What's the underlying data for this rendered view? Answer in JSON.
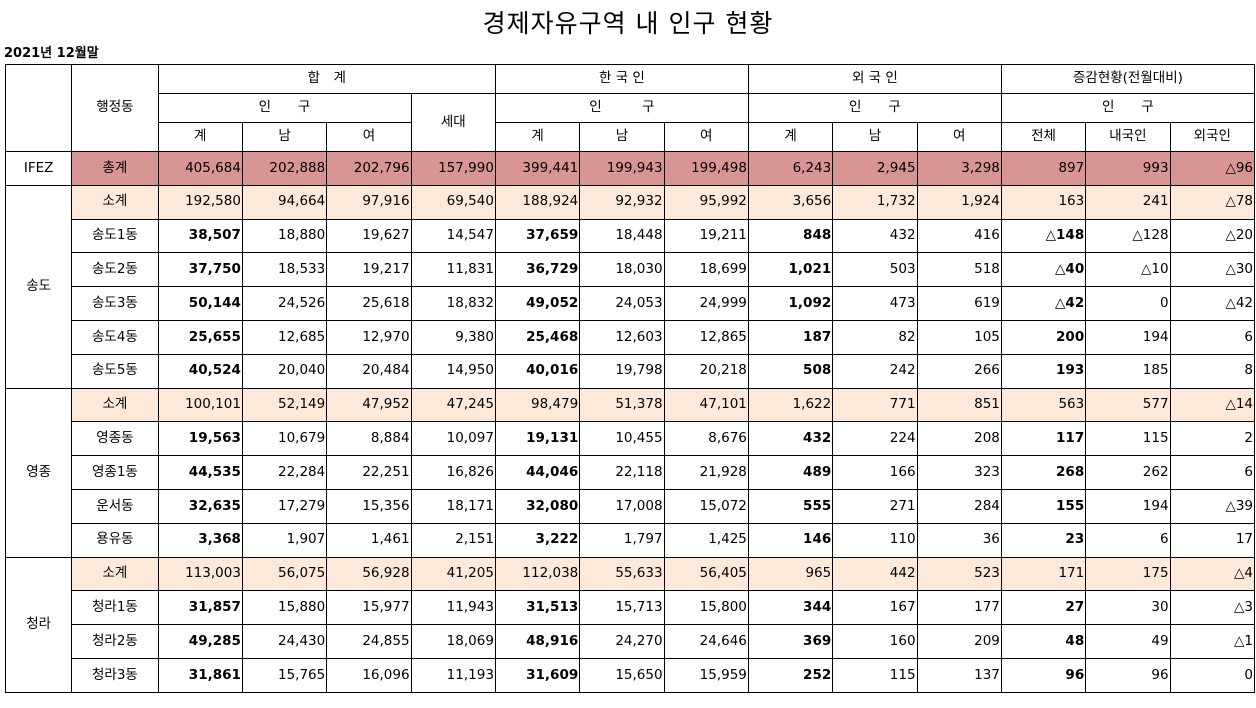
{
  "title": "경제자유구역 내 인구 현황",
  "date": "2021년 12월말",
  "headers": {
    "dong": "행정동",
    "total": "합　계",
    "korean": "한 국 인",
    "foreign": "외 국 인",
    "change": "증감현황(전월대비)",
    "pop": "인　　구",
    "pop2": "인　　　구",
    "household": "세대",
    "sum": "계",
    "male": "남",
    "female": "여",
    "all": "전체",
    "kor": "내국인",
    "for": "외국인"
  },
  "groups": {
    "ifez": "IFEZ",
    "songdo": "송도",
    "yeongjong": "영종",
    "cheongna": "청라"
  },
  "rows": [
    {
      "name": "총계",
      "v": [
        "405,684",
        "202,888",
        "202,796",
        "157,990",
        "399,441",
        "199,943",
        "199,498",
        "6,243",
        "2,945",
        "3,298",
        "897",
        "993",
        "△96"
      ]
    },
    {
      "name": "소계",
      "v": [
        "192,580",
        "94,664",
        "97,916",
        "69,540",
        "188,924",
        "92,932",
        "95,992",
        "3,656",
        "1,732",
        "1,924",
        "163",
        "241",
        "△78"
      ]
    },
    {
      "name": "송도1동",
      "v": [
        "38,507",
        "18,880",
        "19,627",
        "14,547",
        "37,659",
        "18,448",
        "19,211",
        "848",
        "432",
        "416",
        "△148",
        "△128",
        "△20"
      ]
    },
    {
      "name": "송도2동",
      "v": [
        "37,750",
        "18,533",
        "19,217",
        "11,831",
        "36,729",
        "18,030",
        "18,699",
        "1,021",
        "503",
        "518",
        "△40",
        "△10",
        "△30"
      ]
    },
    {
      "name": "송도3동",
      "v": [
        "50,144",
        "24,526",
        "25,618",
        "18,832",
        "49,052",
        "24,053",
        "24,999",
        "1,092",
        "473",
        "619",
        "△42",
        "0",
        "△42"
      ]
    },
    {
      "name": "송도4동",
      "v": [
        "25,655",
        "12,685",
        "12,970",
        "9,380",
        "25,468",
        "12,603",
        "12,865",
        "187",
        "82",
        "105",
        "200",
        "194",
        "6"
      ]
    },
    {
      "name": "송도5동",
      "v": [
        "40,524",
        "20,040",
        "20,484",
        "14,950",
        "40,016",
        "19,798",
        "20,218",
        "508",
        "242",
        "266",
        "193",
        "185",
        "8"
      ]
    },
    {
      "name": "소계",
      "v": [
        "100,101",
        "52,149",
        "47,952",
        "47,245",
        "98,479",
        "51,378",
        "47,101",
        "1,622",
        "771",
        "851",
        "563",
        "577",
        "△14"
      ]
    },
    {
      "name": "영종동",
      "v": [
        "19,563",
        "10,679",
        "8,884",
        "10,097",
        "19,131",
        "10,455",
        "8,676",
        "432",
        "224",
        "208",
        "117",
        "115",
        "2"
      ]
    },
    {
      "name": "영종1동",
      "v": [
        "44,535",
        "22,284",
        "22,251",
        "16,826",
        "44,046",
        "22,118",
        "21,928",
        "489",
        "166",
        "323",
        "268",
        "262",
        "6"
      ]
    },
    {
      "name": "운서동",
      "v": [
        "32,635",
        "17,279",
        "15,356",
        "18,171",
        "32,080",
        "17,008",
        "15,072",
        "555",
        "271",
        "284",
        "155",
        "194",
        "△39"
      ]
    },
    {
      "name": "용유동",
      "v": [
        "3,368",
        "1,907",
        "1,461",
        "2,151",
        "3,222",
        "1,797",
        "1,425",
        "146",
        "110",
        "36",
        "23",
        "6",
        "17"
      ]
    },
    {
      "name": "소계",
      "v": [
        "113,003",
        "56,075",
        "56,928",
        "41,205",
        "112,038",
        "55,633",
        "56,405",
        "965",
        "442",
        "523",
        "171",
        "175",
        "△4"
      ]
    },
    {
      "name": "청라1동",
      "v": [
        "31,857",
        "15,880",
        "15,977",
        "11,943",
        "31,513",
        "15,713",
        "15,800",
        "344",
        "167",
        "177",
        "27",
        "30",
        "△3"
      ]
    },
    {
      "name": "청라2동",
      "v": [
        "49,285",
        "24,430",
        "24,855",
        "18,069",
        "48,916",
        "24,270",
        "24,646",
        "369",
        "160",
        "209",
        "48",
        "49",
        "△1"
      ]
    },
    {
      "name": "청라3동",
      "v": [
        "31,861",
        "15,765",
        "16,096",
        "11,193",
        "31,609",
        "15,650",
        "15,959",
        "252",
        "115",
        "137",
        "96",
        "96",
        "0"
      ]
    }
  ]
}
